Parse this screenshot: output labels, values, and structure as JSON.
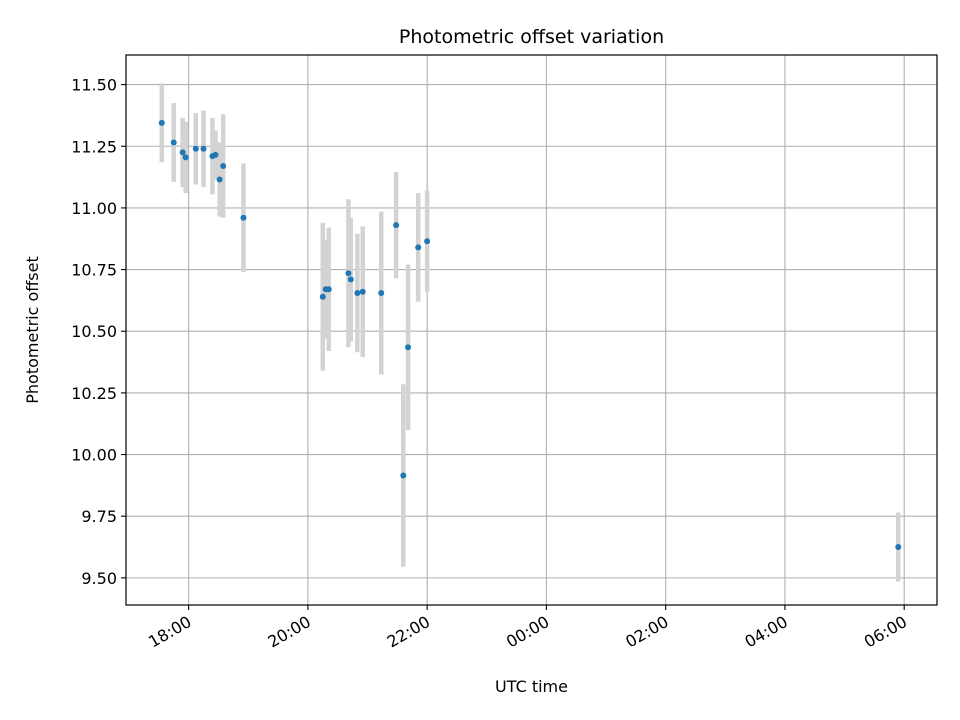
{
  "chart_data": {
    "type": "scatter",
    "title": "Photometric offset variation",
    "xlabel": "UTC time",
    "ylabel": "Photometric offset",
    "x_unit": "hours since 00:00 UTC of the first day",
    "xlim": [
      16.95,
      30.55
    ],
    "ylim": [
      9.39,
      11.62
    ],
    "grid": true,
    "xticks": [
      {
        "value": 18,
        "label": "18:00"
      },
      {
        "value": 20,
        "label": "20:00"
      },
      {
        "value": 22,
        "label": "22:00"
      },
      {
        "value": 24,
        "label": "00:00"
      },
      {
        "value": 26,
        "label": "02:00"
      },
      {
        "value": 28,
        "label": "04:00"
      },
      {
        "value": 30,
        "label": "06:00"
      }
    ],
    "yticks": [
      {
        "value": 9.5,
        "label": "9.50"
      },
      {
        "value": 9.75,
        "label": "9.75"
      },
      {
        "value": 10.0,
        "label": "10.00"
      },
      {
        "value": 10.25,
        "label": "10.25"
      },
      {
        "value": 10.5,
        "label": "10.50"
      },
      {
        "value": 10.75,
        "label": "10.75"
      },
      {
        "value": 11.0,
        "label": "11.00"
      },
      {
        "value": 11.25,
        "label": "11.25"
      },
      {
        "value": 11.5,
        "label": "11.50"
      }
    ],
    "series": [
      {
        "name": "offset",
        "marker_color": "#1f77b4",
        "errorbar_color": "#d3d3d3",
        "points": [
          {
            "x": 17.55,
            "y": 11.345,
            "err": 0.16
          },
          {
            "x": 17.75,
            "y": 11.265,
            "err": 0.16
          },
          {
            "x": 17.9,
            "y": 11.225,
            "err": 0.14
          },
          {
            "x": 17.95,
            "y": 11.205,
            "err": 0.145
          },
          {
            "x": 18.12,
            "y": 11.24,
            "err": 0.145
          },
          {
            "x": 18.25,
            "y": 11.24,
            "err": 0.155
          },
          {
            "x": 18.4,
            "y": 11.21,
            "err": 0.155
          },
          {
            "x": 18.45,
            "y": 11.215,
            "err": 0.1
          },
          {
            "x": 18.52,
            "y": 11.115,
            "err": 0.15
          },
          {
            "x": 18.58,
            "y": 11.17,
            "err": 0.21
          },
          {
            "x": 18.92,
            "y": 10.96,
            "err": 0.22
          },
          {
            "x": 20.25,
            "y": 10.64,
            "err": 0.3
          },
          {
            "x": 20.3,
            "y": 10.67,
            "err": 0.2
          },
          {
            "x": 20.35,
            "y": 10.67,
            "err": 0.25
          },
          {
            "x": 20.68,
            "y": 10.735,
            "err": 0.3
          },
          {
            "x": 20.72,
            "y": 10.71,
            "err": 0.25
          },
          {
            "x": 20.83,
            "y": 10.655,
            "err": 0.24
          },
          {
            "x": 20.92,
            "y": 10.66,
            "err": 0.265
          },
          {
            "x": 21.23,
            "y": 10.655,
            "err": 0.33
          },
          {
            "x": 21.48,
            "y": 10.93,
            "err": 0.215
          },
          {
            "x": 21.6,
            "y": 9.915,
            "err": 0.37
          },
          {
            "x": 21.68,
            "y": 10.435,
            "err": 0.335
          },
          {
            "x": 21.85,
            "y": 10.84,
            "err": 0.22
          },
          {
            "x": 22.0,
            "y": 10.865,
            "err": 0.205
          },
          {
            "x": 29.9,
            "y": 9.625,
            "err": 0.14
          }
        ]
      }
    ]
  }
}
